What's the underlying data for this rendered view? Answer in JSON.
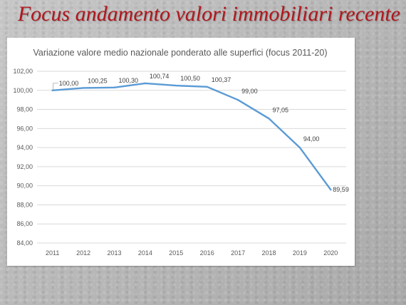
{
  "slide": {
    "title": "Focus andamento valori immobiliari recente"
  },
  "chart_data": {
    "type": "line",
    "title": "Variazione valore medio nazionale ponderato alle superfici (focus 2011-20)",
    "xlabel": "",
    "ylabel": "",
    "x": [
      "2011",
      "2012",
      "2013",
      "2014",
      "2015",
      "2016",
      "2017",
      "2018",
      "2019",
      "2020"
    ],
    "series": [
      {
        "values": [
          100.0,
          100.25,
          100.3,
          100.74,
          100.5,
          100.37,
          99.0,
          97.05,
          94.0,
          89.59
        ],
        "data_labels": [
          "100,00",
          "100,25",
          "100,30",
          "100,74",
          "100,50",
          "100,37",
          "99,00",
          "97,05",
          "94,00",
          "89,59"
        ],
        "color": "#5b9bd5"
      }
    ],
    "ylim": [
      84,
      102
    ],
    "y_ticks": [
      84,
      86,
      88,
      90,
      92,
      94,
      96,
      98,
      100,
      102
    ],
    "y_tick_labels": [
      "84,00",
      "86,00",
      "88,00",
      "90,00",
      "92,00",
      "94,00",
      "96,00",
      "98,00",
      "100,00",
      "102,00"
    ],
    "grid": true,
    "legend": "none"
  }
}
